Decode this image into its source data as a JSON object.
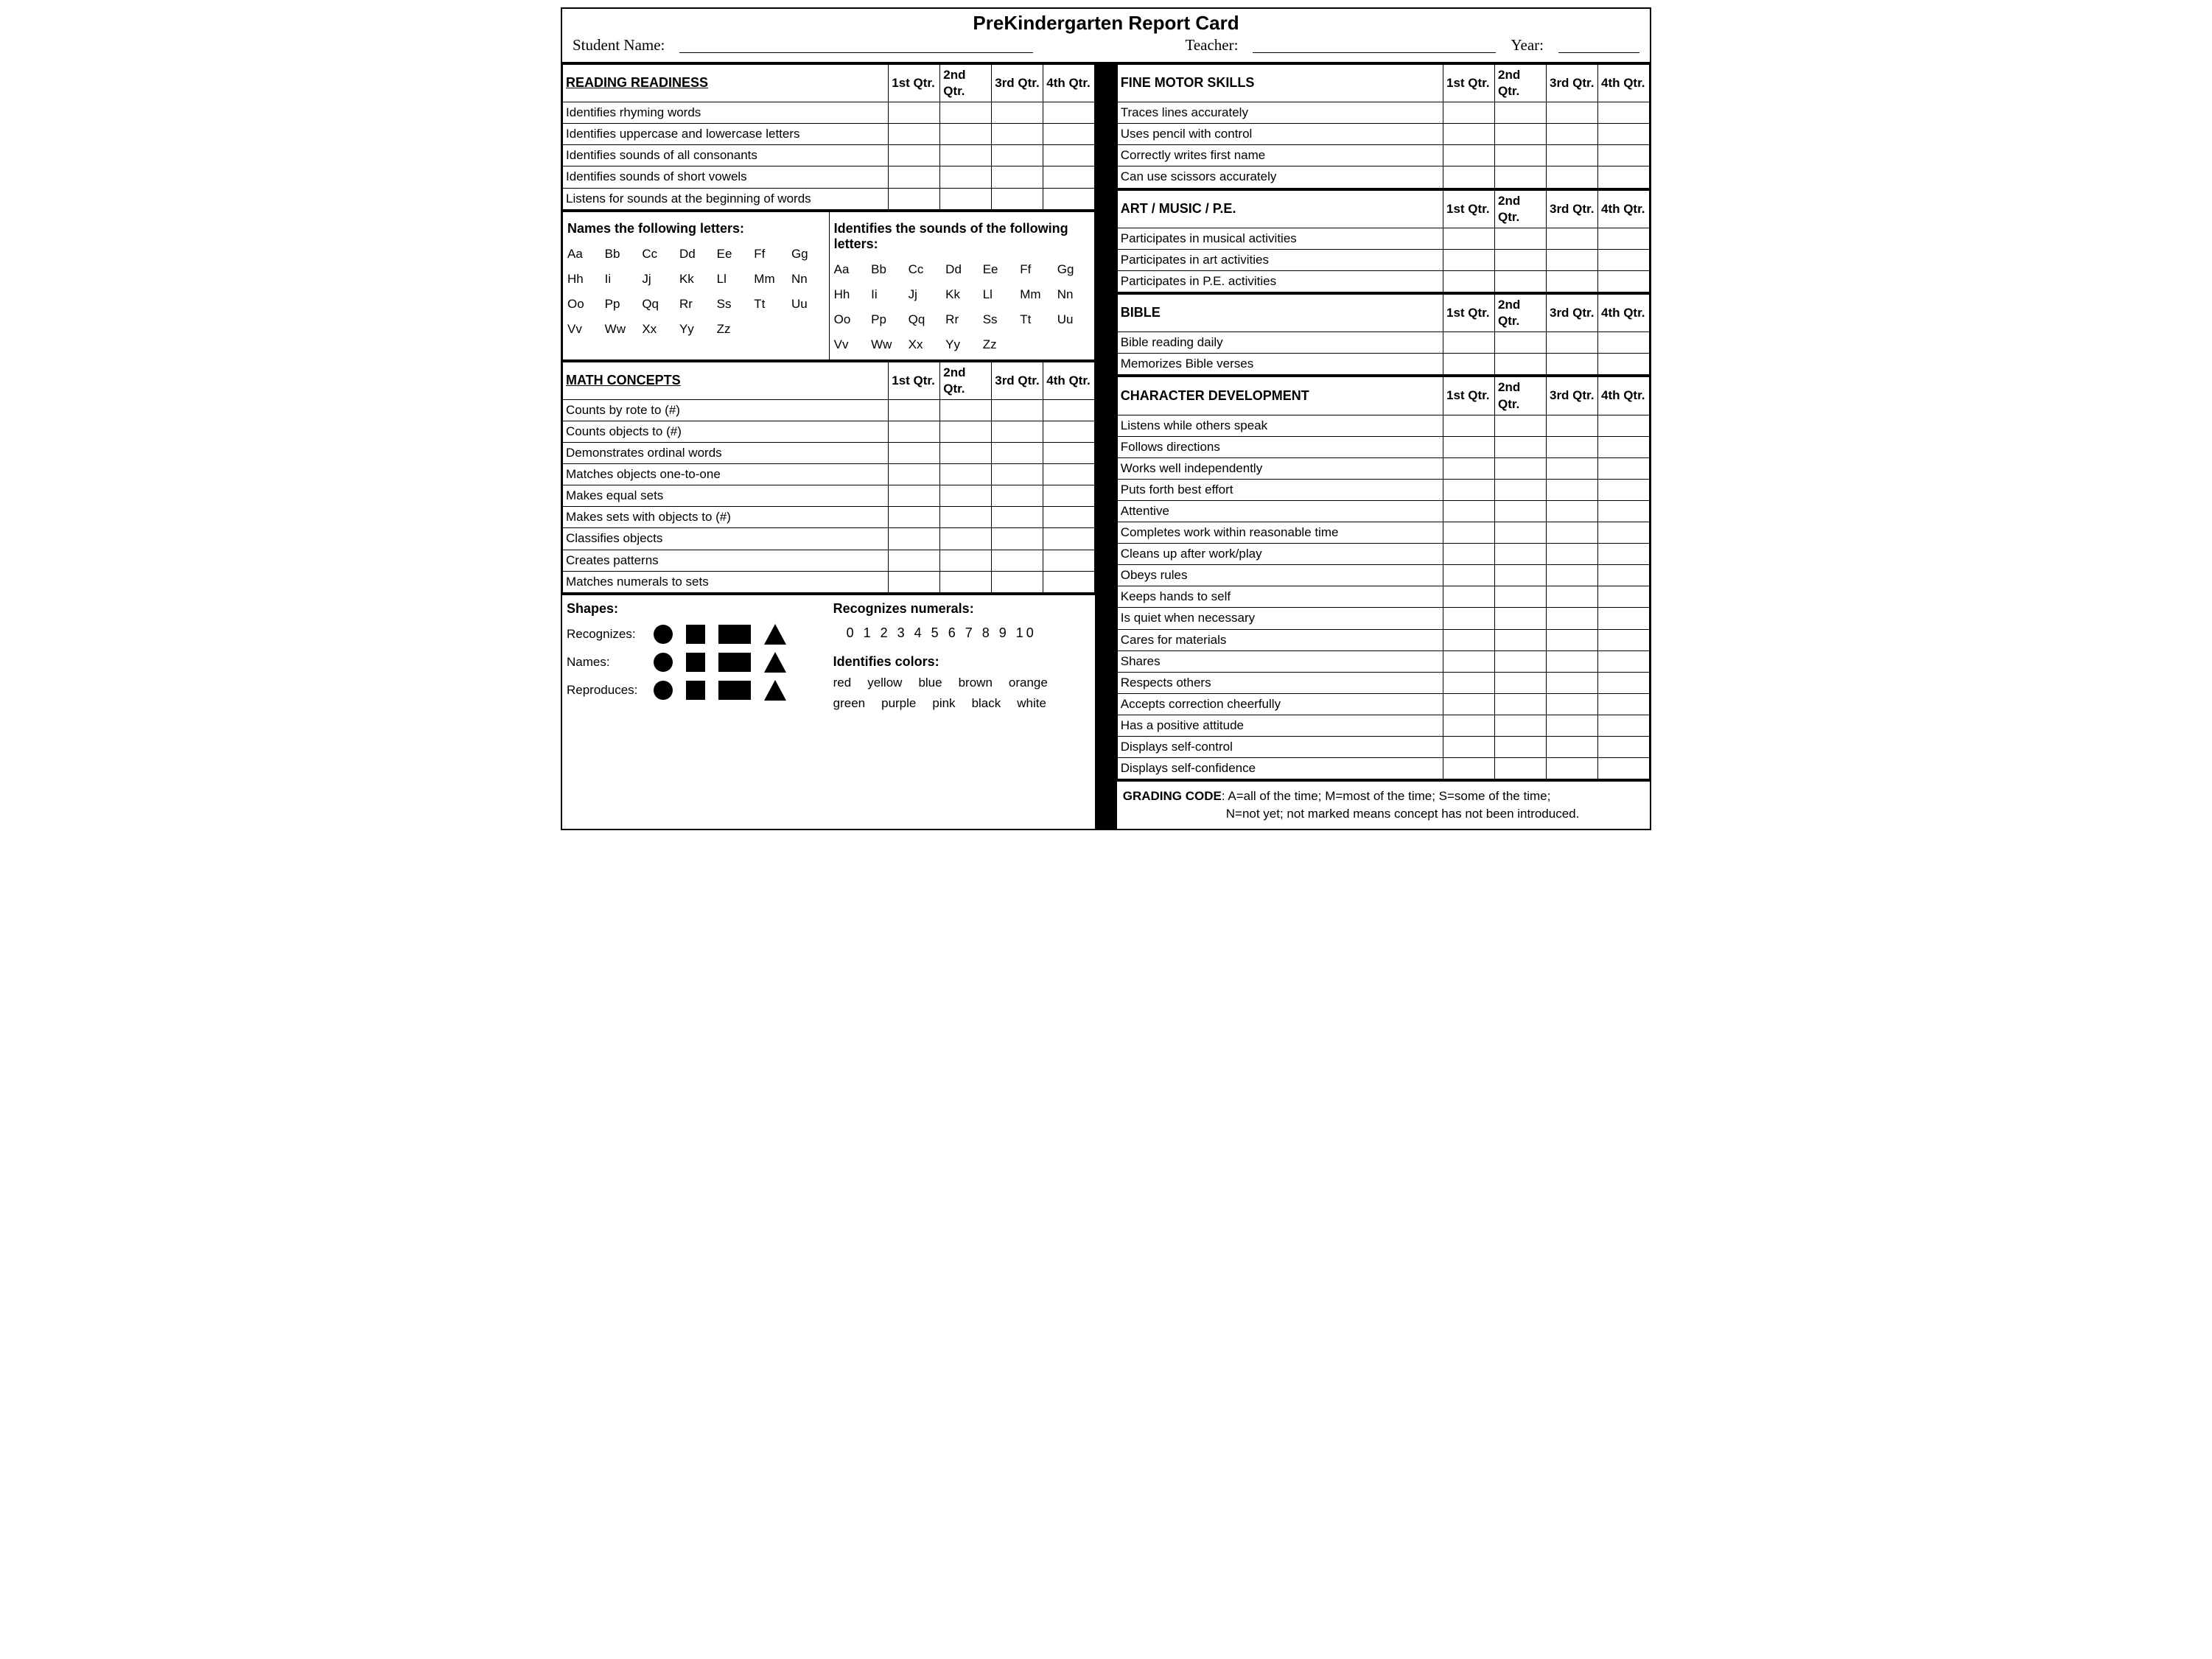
{
  "title": "PreKindergarten Report Card",
  "header": {
    "studentLabel": "Student Name:",
    "teacherLabel": "Teacher:",
    "yearLabel": "Year:"
  },
  "qtrs": [
    "1st Qtr.",
    "2nd Qtr.",
    "3rd Qtr.",
    "4th Qtr."
  ],
  "left": {
    "reading": {
      "heading": "READING READINESS",
      "rows": [
        "Identifies rhyming words",
        "Identifies uppercase and lowercase letters",
        "Identifies sounds of all consonants",
        "Identifies sounds of short vowels",
        "Listens for sounds at the beginning of words"
      ]
    },
    "letters": {
      "namesTitle": "Names the following letters:",
      "soundsTitle": "Identifies the sounds of  the following letters:",
      "cells": [
        "Aa",
        "Bb",
        "Cc",
        "Dd",
        "Ee",
        "Ff",
        "Gg",
        "Hh",
        "Ii",
        "Jj",
        "Kk",
        "Ll",
        "Mm",
        "Nn",
        "Oo",
        "Pp",
        "Qq",
        "Rr",
        "Ss",
        "Tt",
        "Uu",
        "Vv",
        "Ww",
        "Xx",
        "Yy",
        "Zz"
      ]
    },
    "math": {
      "heading": "MATH CONCEPTS",
      "rows": [
        "Counts by rote to (#)",
        "Counts objects to (#)",
        "Demonstrates ordinal words",
        "Matches objects one-to-one",
        "Makes equal sets",
        "Makes sets with objects to (#)",
        "Classifies objects",
        "Creates patterns",
        "Matches numerals to sets"
      ]
    },
    "bottom": {
      "shapesTitle": "Shapes:",
      "recognizes": "Recognizes:",
      "names": "Names:",
      "reproduces": "Reproduces:",
      "numeralsTitle": "Recognizes numerals:",
      "numerals": "0 1 2 3 4 5 6 7 8 9 10",
      "colorsTitle": "Identifies colors:",
      "colorsRow1": [
        "red",
        "yellow",
        "blue",
        "brown",
        "orange"
      ],
      "colorsRow2": [
        "green",
        "purple",
        "pink",
        "black",
        "white"
      ]
    }
  },
  "right": {
    "fine": {
      "heading": "FINE MOTOR SKILLS",
      "rows": [
        "Traces lines accurately",
        "Uses pencil with control",
        "Correctly writes first name",
        "Can use scissors accurately"
      ]
    },
    "art": {
      "heading": "ART / MUSIC / P.E.",
      "rows": [
        "Participates in musical activities",
        "Participates in art activities",
        "Participates in P.E. activities"
      ]
    },
    "bible": {
      "heading": "BIBLE",
      "rows": [
        "Bible reading daily",
        "Memorizes Bible verses"
      ]
    },
    "character": {
      "heading": "CHARACTER DEVELOPMENT",
      "rows": [
        "Listens while others speak",
        "Follows directions",
        "Works well independently",
        "Puts forth best effort",
        "Attentive",
        "Completes work within reasonable time",
        "Cleans up after work/play",
        "Obeys rules",
        "Keeps hands to self",
        "Is quiet when necessary",
        "Cares for materials",
        "Shares",
        "Respects others",
        "Accepts correction cheerfully",
        "Has a positive attitude",
        "Displays self-control",
        "Displays self-confidence"
      ]
    },
    "grading": {
      "label": "GRADING CODE",
      "line1": ": A=all of the time; M=most of the time; S=some of the time;",
      "line2": "N=not yet; not marked means concept has not been introduced."
    }
  }
}
